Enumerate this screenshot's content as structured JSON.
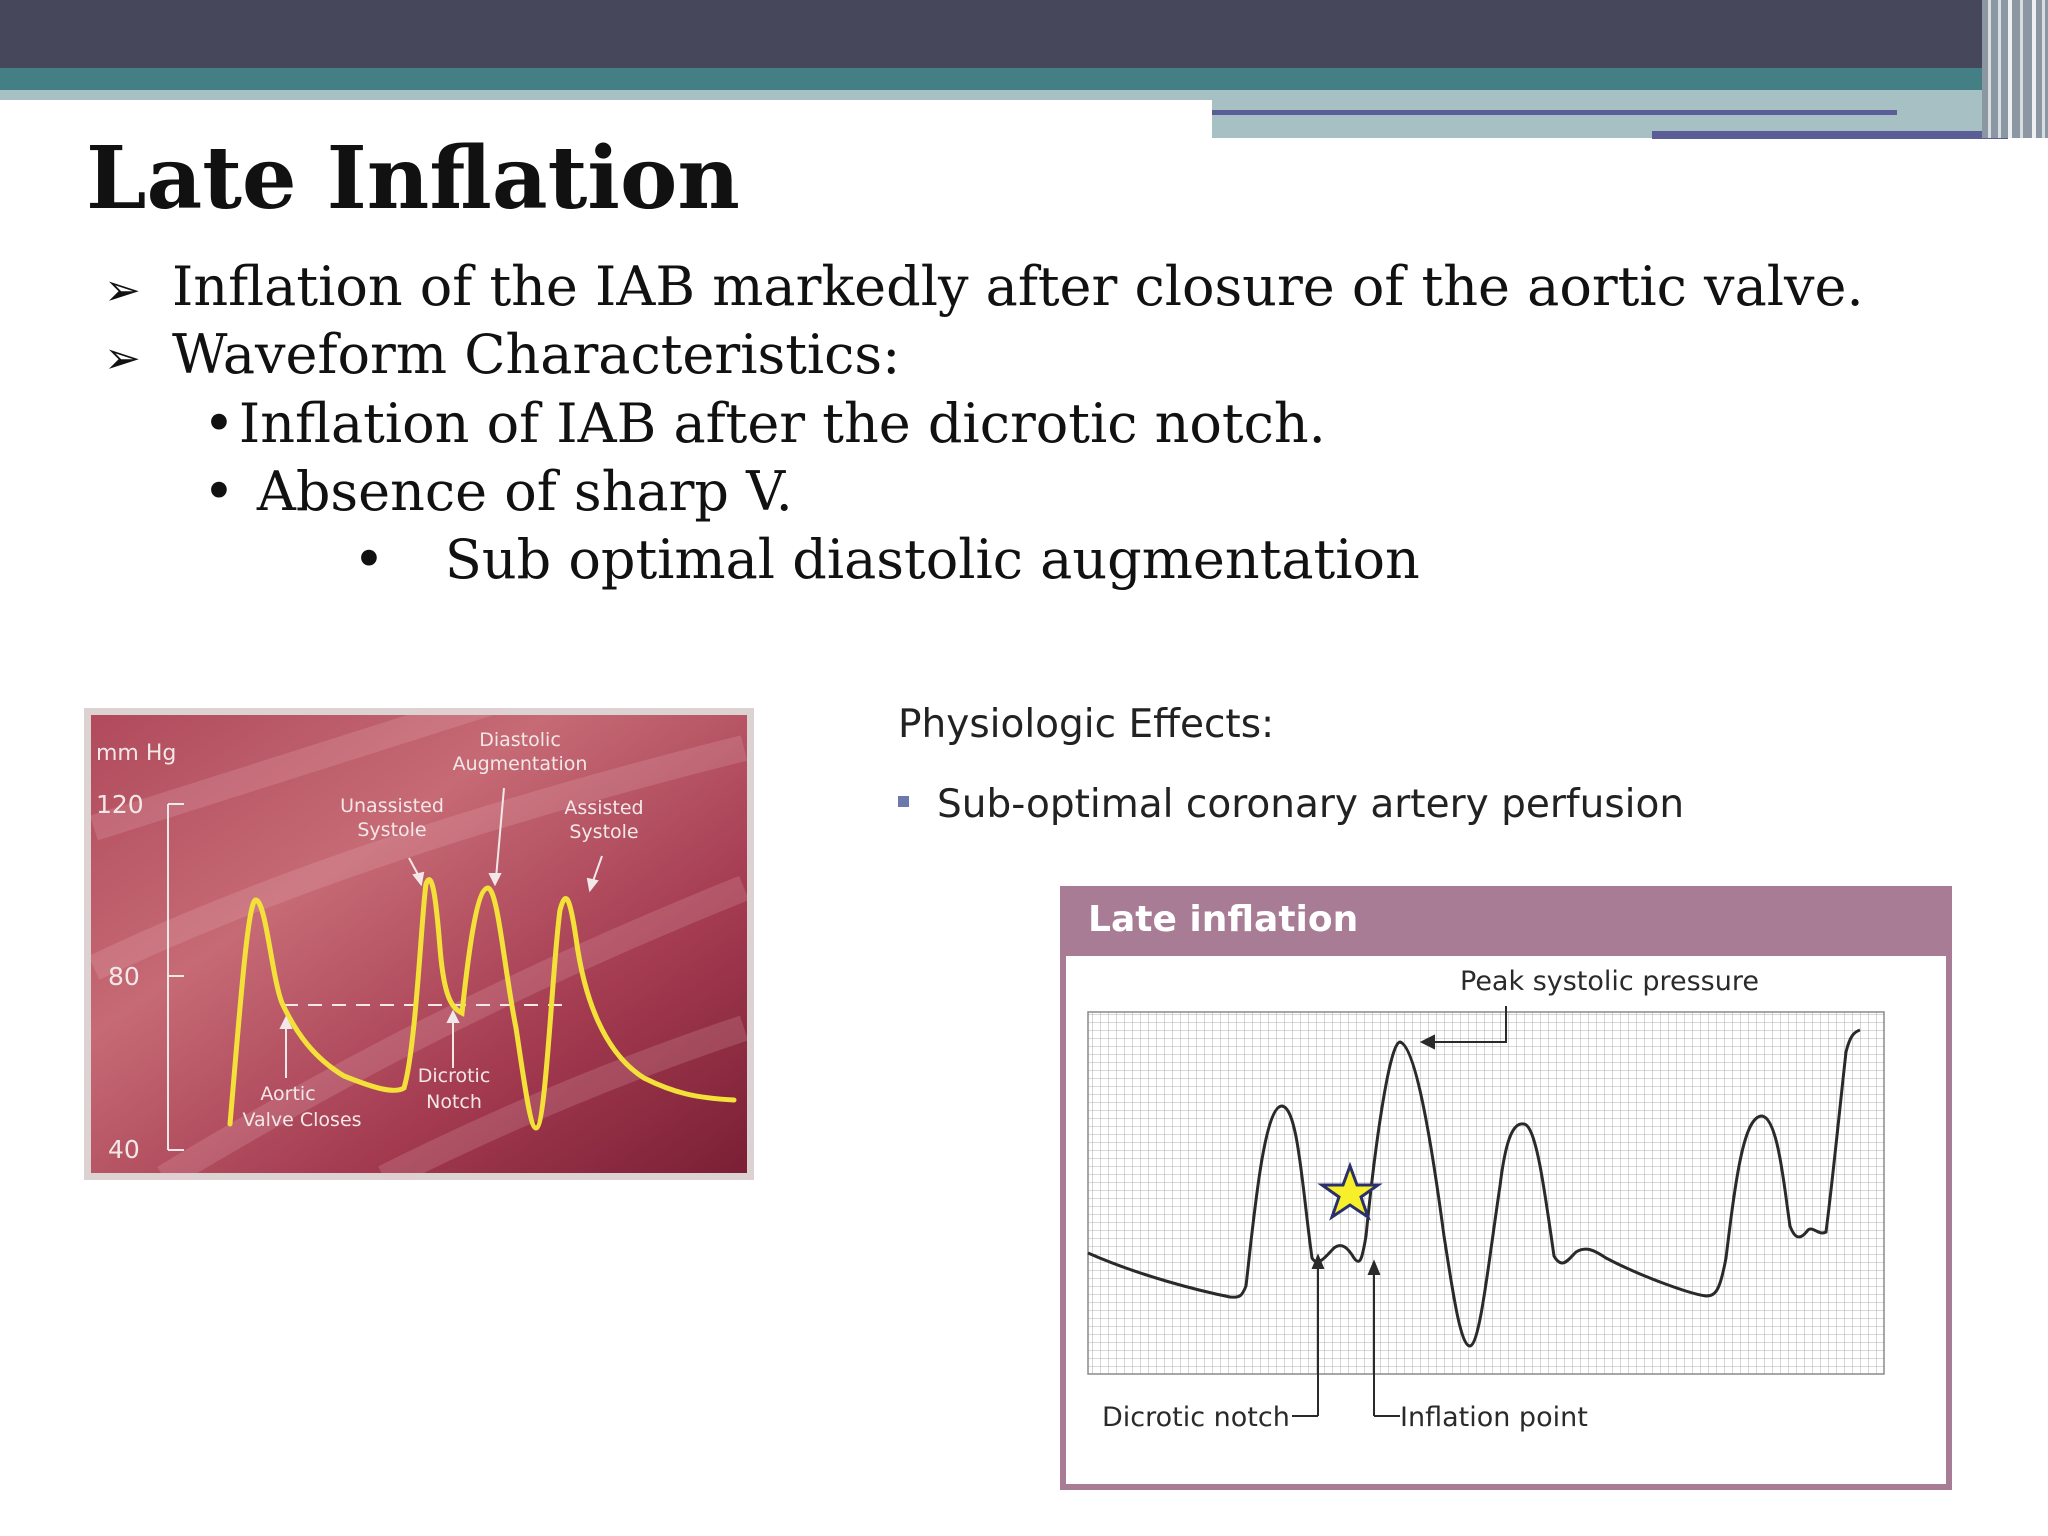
{
  "slide": {
    "title": "Late Inflation",
    "bullets": [
      "Inflation of the IAB markedly after closure of the aortic valve.",
      "Waveform Characteristics:"
    ],
    "sub_bullets": [
      "Inflation of IAB after the dicrotic notch.",
      "Absence of sharp V."
    ],
    "sub_sub_bullets": [
      "Sub optimal diastolic augmentation"
    ]
  },
  "waveform_figure": {
    "unit_label": "mm Hg",
    "y_ticks": [
      "120",
      "80",
      "40"
    ],
    "labels": {
      "diastolic_augmentation_1": "Diastolic",
      "diastolic_augmentation_2": "Augmentation",
      "unassisted_systole_1": "Unassisted",
      "unassisted_systole_2": "Systole",
      "assisted_systole_1": "Assisted",
      "assisted_systole_2": "Systole",
      "aortic_valve_closes_1": "Aortic",
      "aortic_valve_closes_2": "Valve Closes",
      "dicrotic_notch_1": "Dicrotic",
      "dicrotic_notch_2": "Notch"
    },
    "colors": {
      "waveform": "#f3e13a",
      "background": "#9a2f45"
    }
  },
  "physiologic_effects": {
    "title": "Physiologic Effects:",
    "items": [
      "Sub-optimal coronary artery perfusion"
    ]
  },
  "late_inflation_figure": {
    "header": "Late inflation",
    "peak_label": "Peak systolic pressure",
    "dicrotic_label": "Dicrotic notch",
    "inflation_label": "Inflation point",
    "colors": {
      "header": "#a97c95",
      "star": "#f6ef2a"
    }
  }
}
